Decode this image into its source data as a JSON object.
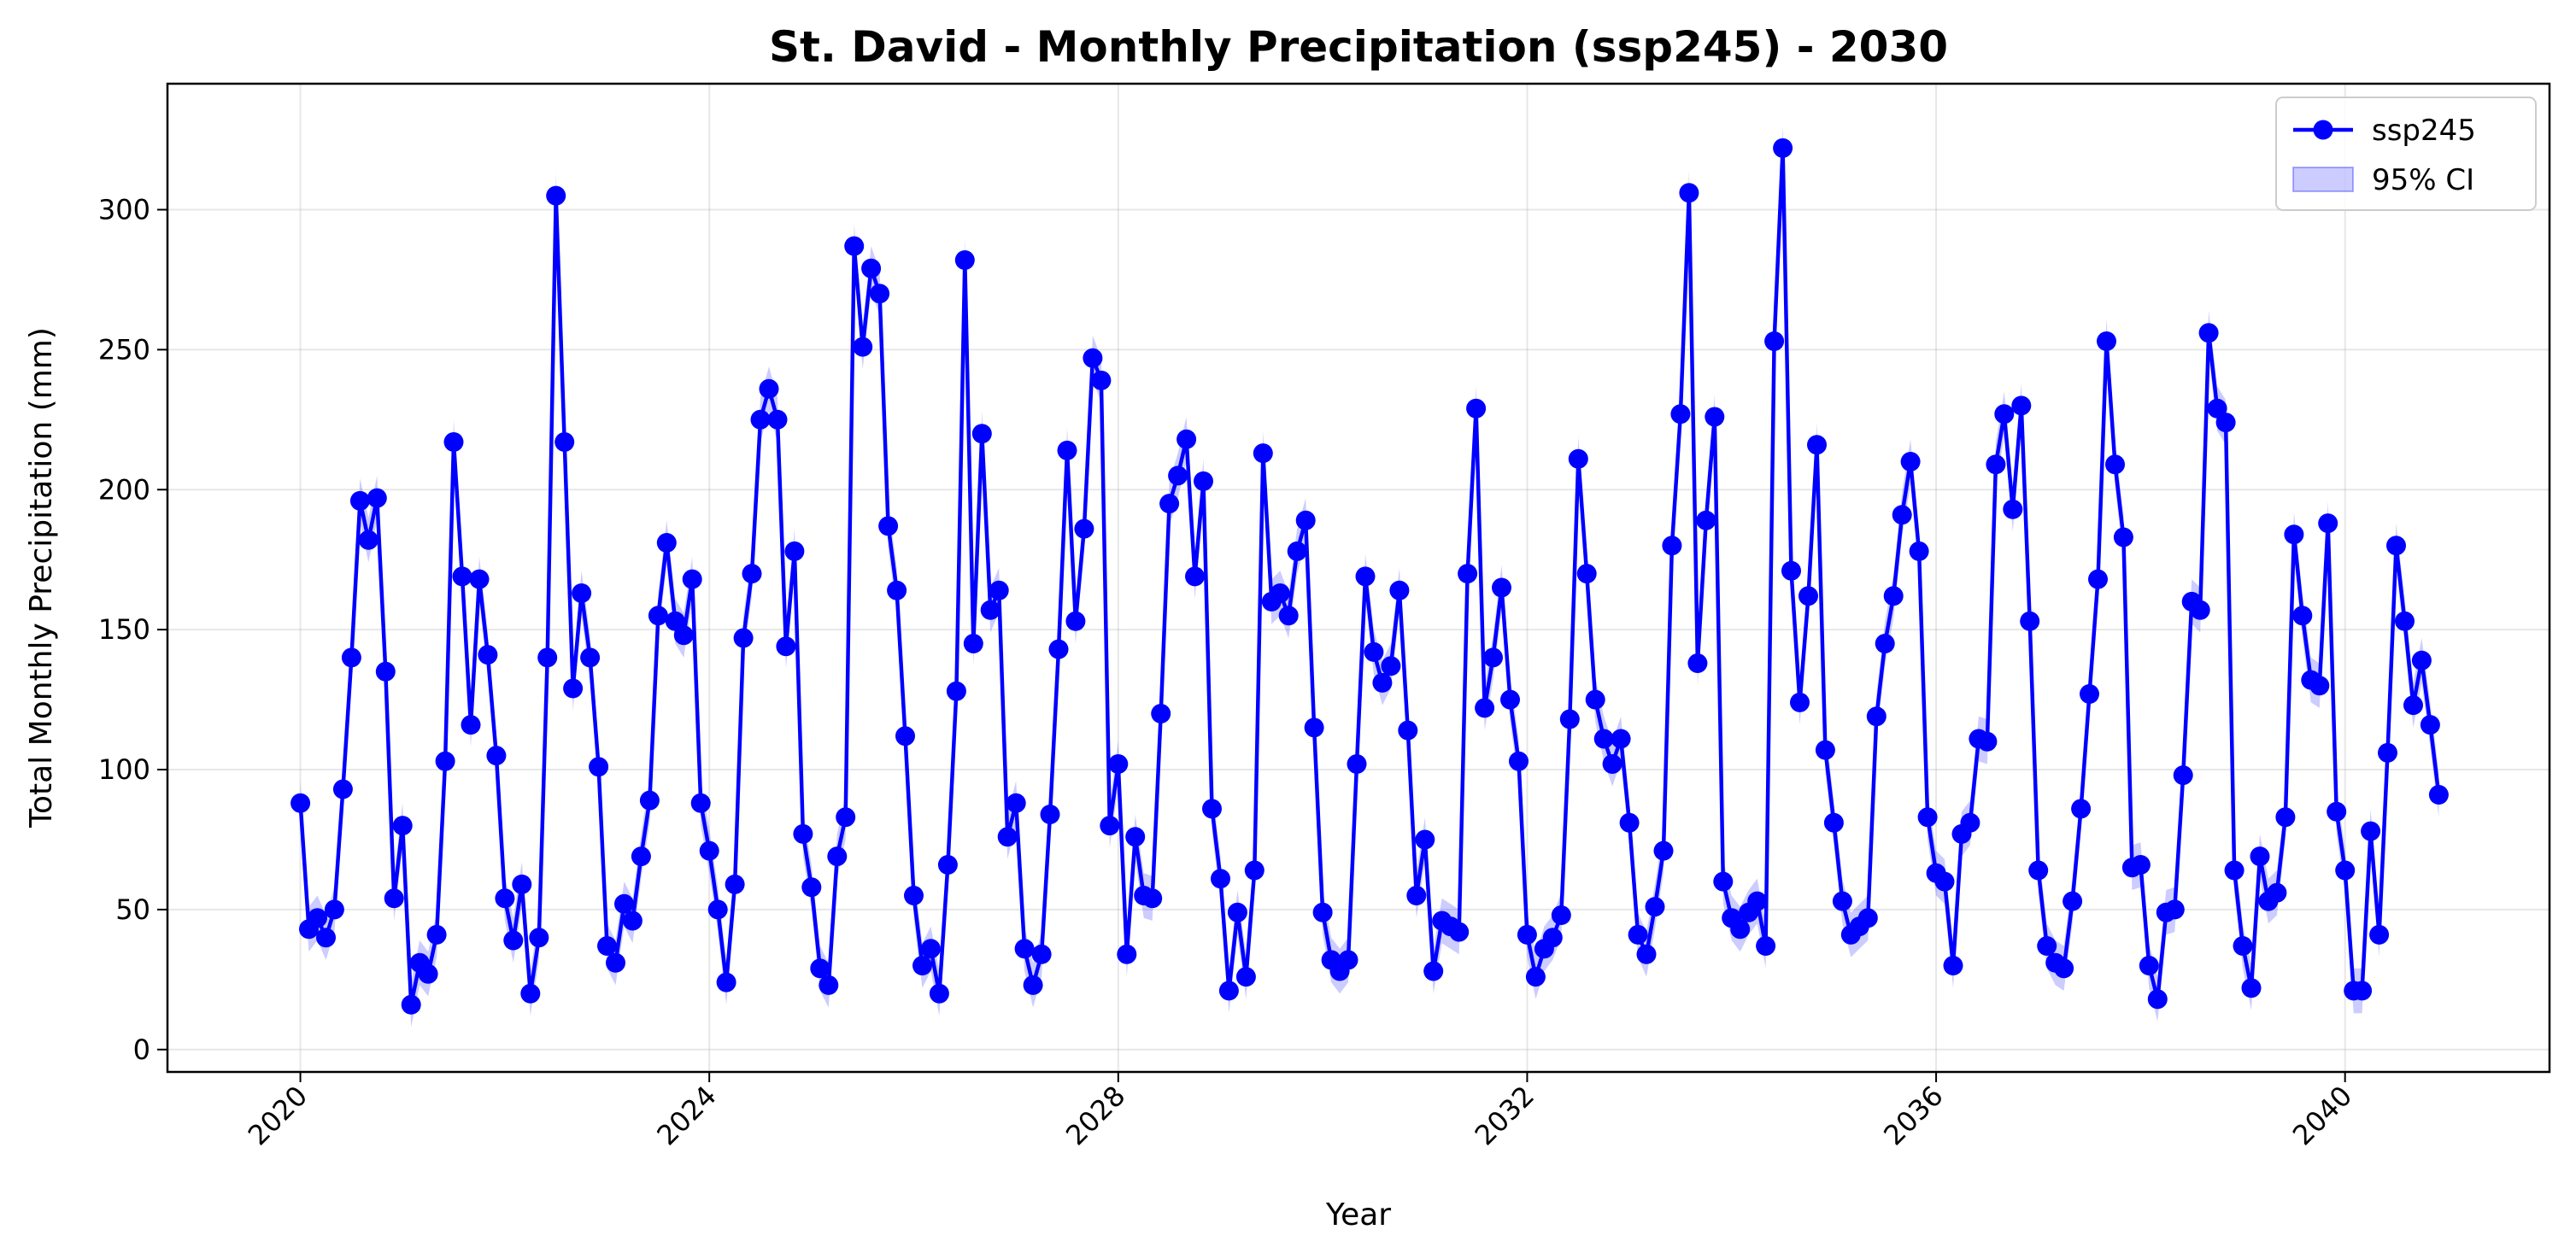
{
  "chart_data": {
    "type": "line",
    "title": "St. David - Monthly Precipitation (ssp245) - 2030",
    "xlabel": "Year",
    "ylabel": "Total Monthly Precipitation (mm)",
    "xlim": [
      2018.7,
      2042.0
    ],
    "ylim": [
      -8,
      345
    ],
    "x_ticks": [
      2020,
      2024,
      2028,
      2032,
      2036,
      2040
    ],
    "x_tick_labels": [
      "2020",
      "2024",
      "2028",
      "2032",
      "2036",
      "2040"
    ],
    "y_ticks": [
      0,
      50,
      100,
      150,
      200,
      250,
      300
    ],
    "y_tick_labels": [
      "0",
      "50",
      "100",
      "150",
      "200",
      "250",
      "300"
    ],
    "grid": true,
    "legend_position": "top-right",
    "x_start": "2020-01",
    "x_step": "monthly",
    "series": [
      {
        "name": "ssp245",
        "color": "#0000ff",
        "marker": "circle",
        "values": [
          88,
          43,
          47,
          40,
          50,
          93,
          140,
          196,
          182,
          197,
          135,
          54,
          80,
          16,
          31,
          27,
          41,
          103,
          217,
          169,
          116,
          168,
          141,
          105,
          54,
          39,
          59,
          20,
          40,
          140,
          305,
          217,
          129,
          163,
          140,
          101,
          37,
          31,
          52,
          46,
          69,
          89,
          155,
          181,
          153,
          148,
          168,
          88,
          71,
          50,
          24,
          59,
          147,
          170,
          225,
          236,
          225,
          144,
          178,
          77,
          58,
          29,
          23,
          69,
          83,
          287,
          251,
          279,
          270,
          187,
          164,
          112,
          55,
          30,
          36,
          20,
          66,
          128,
          282,
          145,
          220,
          157,
          164,
          76,
          88,
          36,
          23,
          34,
          84,
          143,
          214,
          153,
          186,
          247,
          239,
          80,
          102,
          34,
          76,
          55,
          54,
          120,
          195,
          205,
          218,
          169,
          203,
          86,
          61,
          21,
          49,
          26,
          64,
          213,
          160,
          163,
          155,
          178,
          189,
          115,
          49,
          32,
          28,
          32,
          102,
          169,
          142,
          131,
          137,
          164,
          114,
          55,
          75,
          28,
          46,
          44,
          42,
          170,
          229,
          122,
          140,
          165,
          125,
          103,
          41,
          26,
          36,
          40,
          48,
          118,
          211,
          170,
          125,
          111,
          102,
          111,
          81,
          41,
          34,
          51,
          71,
          180,
          227,
          306,
          138,
          189,
          226,
          60,
          47,
          43,
          49,
          53,
          37,
          253,
          322,
          171,
          124,
          162,
          216,
          107,
          81,
          53,
          41,
          44,
          47,
          119,
          145,
          162,
          191,
          210,
          178,
          83,
          63,
          60,
          30,
          77,
          81,
          111,
          110,
          209,
          227,
          193,
          230,
          153,
          64,
          37,
          31,
          29,
          53,
          86,
          127,
          168,
          253,
          209,
          183,
          65,
          66,
          30,
          18,
          49,
          50,
          98,
          160,
          157,
          256,
          229,
          224,
          64,
          37,
          22,
          69,
          53,
          56,
          83,
          184,
          155,
          132,
          130,
          188,
          85,
          64,
          21,
          21,
          78,
          41,
          106,
          180,
          153,
          123,
          139,
          116,
          91
        ],
        "ci_halfwidth": 8
      }
    ],
    "legend": [
      {
        "label": "ssp245",
        "kind": "line-marker",
        "color": "#0000ff"
      },
      {
        "label": "95% CI",
        "kind": "patch",
        "color": "#0000ff",
        "alpha": 0.2
      }
    ]
  }
}
